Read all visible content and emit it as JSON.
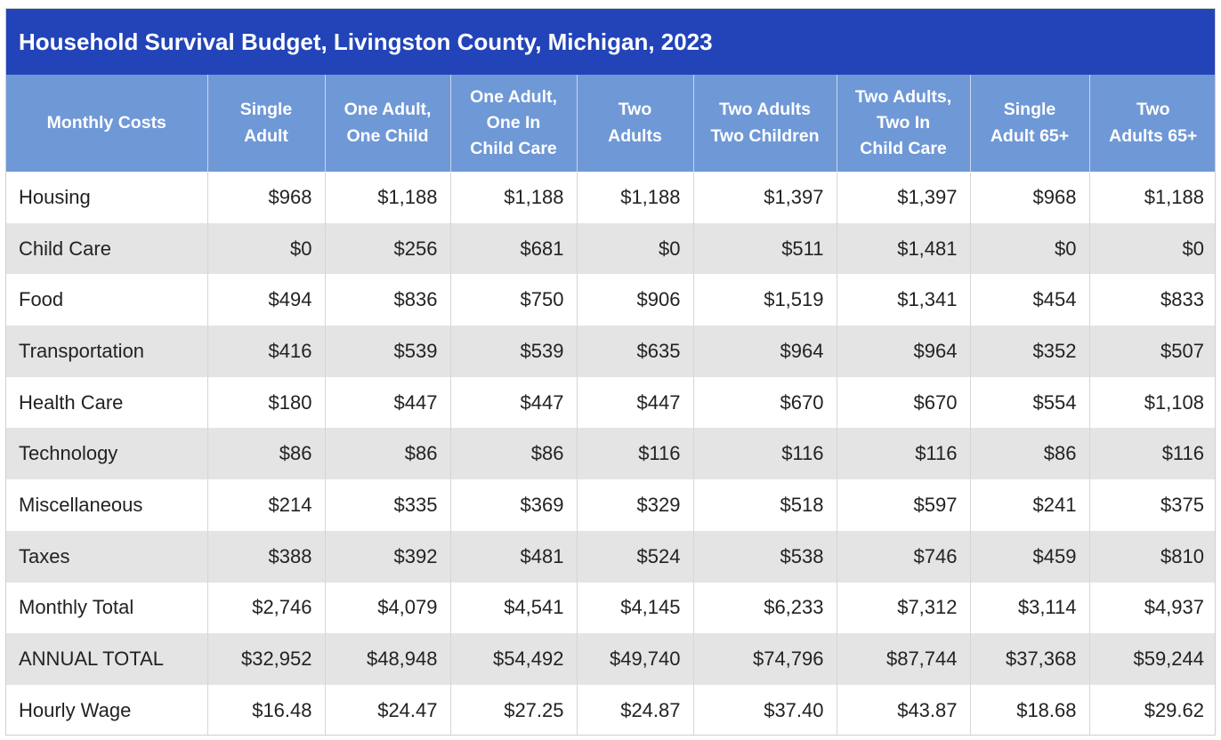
{
  "chart_data": {
    "type": "table",
    "title": "Household Survival Budget, Livingston County, Michigan, 2023",
    "corner_header": "Monthly Costs",
    "columns": [
      [
        "Single",
        "Adult"
      ],
      [
        "One Adult,",
        "One Child"
      ],
      [
        "One Adult,",
        "One In",
        "Child Care"
      ],
      [
        "Two",
        "Adults"
      ],
      [
        "Two Adults",
        "Two Children"
      ],
      [
        "Two Adults,",
        "Two In",
        "Child Care"
      ],
      [
        "Single",
        "Adult 65+"
      ],
      [
        "Two",
        "Adults 65+"
      ]
    ],
    "rows": [
      {
        "label": "Housing",
        "values": [
          "$968",
          "$1,188",
          "$1,188",
          "$1,188",
          "$1,397",
          "$1,397",
          "$968",
          "$1,188"
        ]
      },
      {
        "label": "Child Care",
        "values": [
          "$0",
          "$256",
          "$681",
          "$0",
          "$511",
          "$1,481",
          "$0",
          "$0"
        ]
      },
      {
        "label": "Food",
        "values": [
          "$494",
          "$836",
          "$750",
          "$906",
          "$1,519",
          "$1,341",
          "$454",
          "$833"
        ]
      },
      {
        "label": "Transportation",
        "values": [
          "$416",
          "$539",
          "$539",
          "$635",
          "$964",
          "$964",
          "$352",
          "$507"
        ]
      },
      {
        "label": "Health Care",
        "values": [
          "$180",
          "$447",
          "$447",
          "$447",
          "$670",
          "$670",
          "$554",
          "$1,108"
        ]
      },
      {
        "label": "Technology",
        "values": [
          "$86",
          "$86",
          "$86",
          "$116",
          "$116",
          "$116",
          "$86",
          "$116"
        ]
      },
      {
        "label": "Miscellaneous",
        "values": [
          "$214",
          "$335",
          "$369",
          "$329",
          "$518",
          "$597",
          "$241",
          "$375"
        ]
      },
      {
        "label": "Taxes",
        "values": [
          "$388",
          "$392",
          "$481",
          "$524",
          "$538",
          "$746",
          "$459",
          "$810"
        ]
      },
      {
        "label": "Monthly Total",
        "values": [
          "$2,746",
          "$4,079",
          "$4,541",
          "$4,145",
          "$6,233",
          "$7,312",
          "$3,114",
          "$4,937"
        ]
      },
      {
        "label": "ANNUAL TOTAL",
        "values": [
          "$32,952",
          "$48,948",
          "$54,492",
          "$49,740",
          "$74,796",
          "$87,744",
          "$37,368",
          "$59,244"
        ]
      },
      {
        "label": "Hourly Wage",
        "values": [
          "$16.48",
          "$24.47",
          "$27.25",
          "$24.87",
          "$37.40",
          "$43.87",
          "$18.68",
          "$29.62"
        ]
      }
    ]
  },
  "colors": {
    "title_background": "#2244b8",
    "header_background": "#6f98d6",
    "row_stripe": "#e4e4e4"
  }
}
